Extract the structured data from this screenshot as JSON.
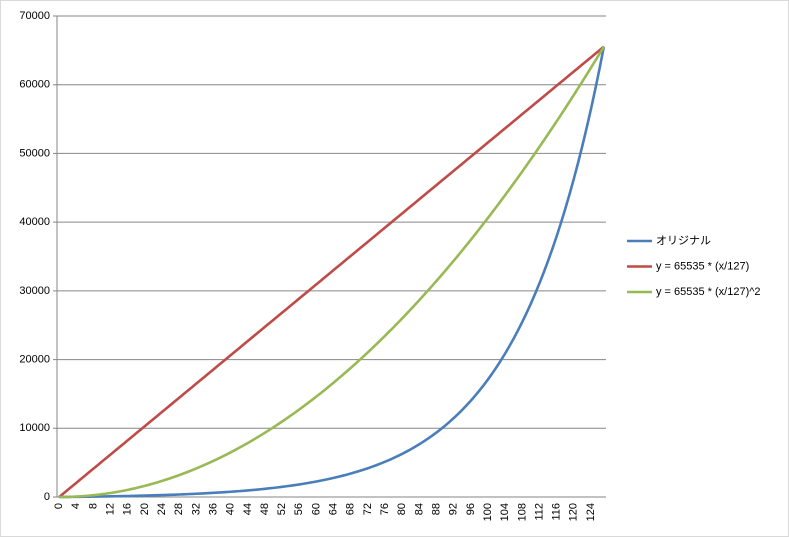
{
  "chart_data": {
    "type": "line",
    "categories": [
      0,
      null,
      null,
      null,
      4,
      null,
      null,
      null,
      8,
      null,
      null,
      null,
      12,
      null,
      null,
      null,
      16,
      null,
      null,
      null,
      20,
      null,
      null,
      null,
      24,
      null,
      null,
      null,
      28,
      null,
      null,
      null,
      32,
      null,
      null,
      null,
      36,
      null,
      null,
      null,
      40,
      null,
      null,
      null,
      44,
      null,
      null,
      null,
      48,
      null,
      null,
      null,
      52,
      null,
      null,
      null,
      56,
      null,
      null,
      null,
      60,
      null,
      null,
      null,
      64,
      null,
      null,
      null,
      68,
      null,
      null,
      null,
      72,
      null,
      null,
      null,
      76,
      null,
      null,
      null,
      80,
      null,
      null,
      null,
      84,
      null,
      null,
      null,
      88,
      null,
      null,
      null,
      92,
      null,
      null,
      null,
      96,
      null,
      null,
      null,
      100,
      null,
      null,
      null,
      104,
      null,
      null,
      null,
      108,
      null,
      null,
      null,
      112,
      null,
      null,
      null,
      116,
      null,
      null,
      null,
      120,
      null,
      null,
      null,
      124,
      null,
      null,
      null
    ],
    "series": [
      {
        "name": "オリジナル",
        "color": "#4a7ebb",
        "values": [
          0,
          6,
          13,
          20,
          27,
          34,
          42,
          51,
          59,
          69,
          78,
          88,
          99,
          110,
          122,
          134,
          147,
          161,
          176,
          191,
          206,
          223,
          241,
          259,
          278,
          299,
          320,
          343,
          366,
          391,
          417,
          444,
          473,
          503,
          535,
          568,
          603,
          640,
          679,
          719,
          762,
          807,
          854,
          904,
          956,
          1011,
          1068,
          1129,
          1192,
          1259,
          1329,
          1402,
          1480,
          1561,
          1647,
          1736,
          1831,
          1930,
          2034,
          2143,
          2258,
          2379,
          2506,
          2639,
          2780,
          2927,
          3082,
          3244,
          3415,
          3595,
          3783,
          3981,
          4190,
          4409,
          4639,
          4880,
          5134,
          5401,
          5681,
          5976,
          6285,
          6610,
          6952,
          7311,
          7689,
          8085,
          8501,
          8939,
          9399,
          9882,
          10391,
          10924,
          11484,
          12074,
          12693,
          13343,
          14026,
          14745,
          15499,
          16291,
          17125,
          18000,
          18921,
          19887,
          20903,
          21970,
          23091,
          24270,
          25507,
          26808,
          28175,
          29611,
          31120,
          32705,
          34371,
          36122,
          37963,
          39896,
          41929,
          44061,
          46304,
          48661,
          51137,
          53738,
          56472,
          59344,
          62362,
          65535
        ]
      },
      {
        "name": "y = 65535 * (x/127)",
        "color": "#be4b48",
        "values": [
          0,
          516,
          1032,
          1548,
          2064,
          2580,
          3096,
          3612,
          4128,
          4644,
          5160,
          5676,
          6192,
          6708,
          7224,
          7740,
          8256,
          8772,
          9288,
          9804,
          10320,
          10836,
          11353,
          11869,
          12385,
          12901,
          13417,
          13933,
          14449,
          14965,
          15481,
          15997,
          16513,
          17029,
          17545,
          18061,
          18577,
          19093,
          19609,
          20125,
          20641,
          21157,
          21673,
          22189,
          22705,
          23221,
          23737,
          24253,
          24769,
          25285,
          25801,
          26317,
          26833,
          27349,
          27865,
          28381,
          28897,
          29413,
          29929,
          30445,
          30961,
          31477,
          31993,
          32509,
          33026,
          33542,
          34058,
          34574,
          35090,
          35606,
          36122,
          36638,
          37154,
          37670,
          38186,
          38702,
          39218,
          39734,
          40250,
          40766,
          41282,
          41798,
          42314,
          42830,
          43346,
          43862,
          44378,
          44894,
          45410,
          45926,
          46442,
          46958,
          47474,
          47990,
          48506,
          49022,
          49538,
          50054,
          50570,
          51086,
          51602,
          52118,
          52634,
          53150,
          53666,
          54182,
          54699,
          55215,
          55731,
          56247,
          56763,
          57279,
          57795,
          58311,
          58827,
          59343,
          59859,
          60375,
          60891,
          61407,
          61923,
          62439,
          62955,
          63471,
          63987,
          64503,
          65019,
          65535
        ]
      },
      {
        "name": "y = 65535 * (x/127)^2",
        "color": "#98b954",
        "values": [
          0,
          4,
          16,
          37,
          65,
          102,
          146,
          199,
          260,
          329,
          406,
          492,
          585,
          687,
          796,
          914,
          1040,
          1174,
          1316,
          1467,
          1625,
          1792,
          1967,
          2149,
          2340,
          2540,
          2747,
          2962,
          3186,
          3417,
          3657,
          3905,
          4161,
          4425,
          4697,
          4977,
          5266,
          5563,
          5867,
          6180,
          6501,
          6830,
          7167,
          7513,
          7866,
          8228,
          8598,
          8976,
          9362,
          9756,
          10158,
          10568,
          10987,
          11414,
          11848,
          12291,
          12742,
          13201,
          13669,
          14144,
          14628,
          15119,
          15619,
          16127,
          16643,
          17167,
          17699,
          18240,
          18788,
          19345,
          19910,
          20483,
          21064,
          21653,
          22250,
          22856,
          23469,
          24091,
          24721,
          25358,
          26004,
          26659,
          27321,
          27991,
          28670,
          29357,
          30051,
          30754,
          31465,
          32185,
          32912,
          33647,
          34391,
          35143,
          35902,
          36670,
          37446,
          38231,
          39023,
          39823,
          40632,
          41449,
          42274,
          43107,
          43948,
          44797,
          45654,
          46520,
          47393,
          48275,
          49165,
          50063,
          50969,
          51883,
          52805,
          53736,
          54674,
          55621,
          56576,
          57539,
          58510,
          59489,
          60477,
          61472,
          62476,
          63488,
          64507,
          65535
        ]
      }
    ],
    "ylim": [
      0,
      70000
    ],
    "yticks": [
      0,
      10000,
      20000,
      30000,
      40000,
      50000,
      60000,
      70000
    ],
    "grid": true,
    "legend": "right"
  }
}
